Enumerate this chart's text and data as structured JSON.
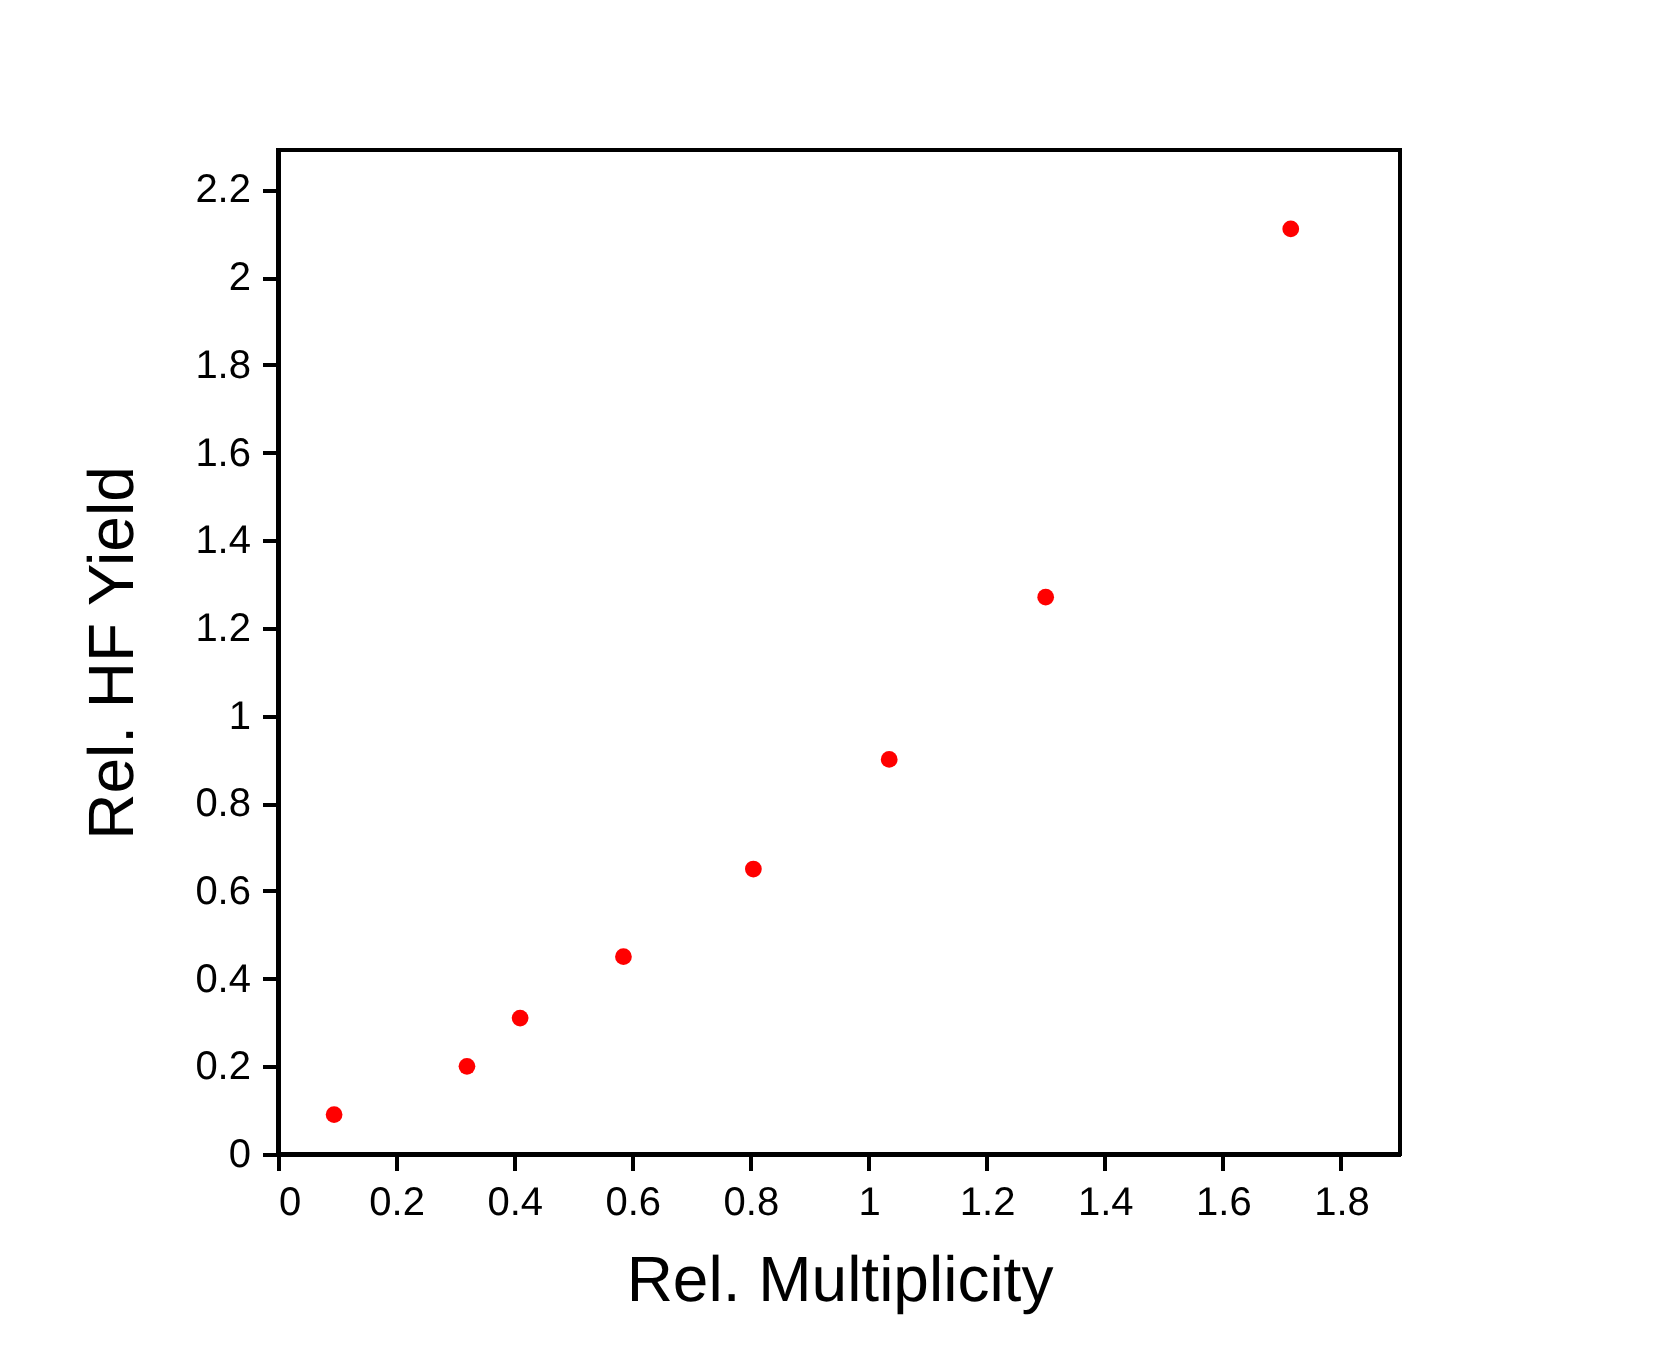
{
  "chart_data": {
    "type": "scatter",
    "xlabel": "Rel. Multiplicity",
    "ylabel": "Rel. HF Yield",
    "x": [
      0.095,
      0.32,
      0.41,
      0.585,
      0.805,
      1.035,
      1.3,
      1.715
    ],
    "series": [
      {
        "color": "#ff0000",
        "values": [
          0.09,
          0.2,
          0.31,
          0.45,
          0.65,
          0.9,
          1.27,
          2.11
        ]
      }
    ],
    "xlim": [
      0,
      1.9
    ],
    "xticks": [
      0,
      0.2,
      0.4,
      0.6,
      0.8,
      1,
      1.2,
      1.4,
      1.6,
      1.8
    ],
    "ylim": [
      0,
      2.29
    ],
    "yticks": [
      0,
      0.2,
      0.4,
      0.6,
      0.8,
      1,
      1.2,
      1.4,
      1.6,
      1.8,
      2,
      2.2
    ],
    "marker": "circle",
    "grid": false,
    "legend": false
  }
}
